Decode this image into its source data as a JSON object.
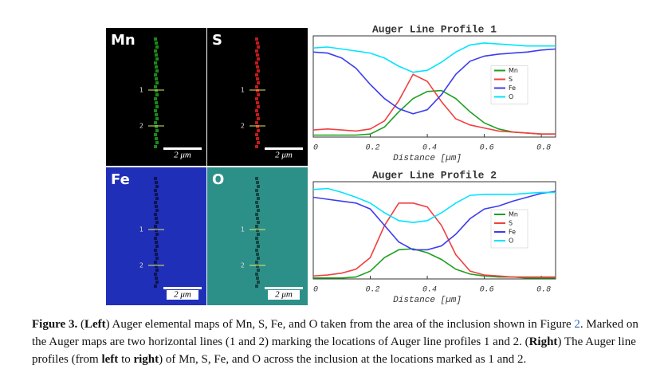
{
  "maps": [
    {
      "label": "Mn",
      "markers": [
        "1",
        "2"
      ],
      "scale": "2 μm",
      "background": "#000000",
      "streak": "#1fa01f"
    },
    {
      "label": "S",
      "markers": [
        "1",
        "2"
      ],
      "scale": "2 μm",
      "background": "#000000",
      "streak": "#e02020"
    },
    {
      "label": "Fe",
      "markers": [
        "1",
        "2"
      ],
      "scale": "2 μm",
      "background": "#1f2fb8",
      "streak": "#0a0f40"
    },
    {
      "label": "O",
      "markers": [
        "1",
        "2"
      ],
      "scale": "2 μm",
      "background": "#2c8f88",
      "streak": "#123c3a"
    }
  ],
  "chart_data": [
    {
      "type": "line",
      "title": "Auger Line Profile 1",
      "x_label": "Distance [µm]",
      "x": [
        0,
        0.05,
        0.1,
        0.15,
        0.2,
        0.25,
        0.3,
        0.35,
        0.4,
        0.45,
        0.5,
        0.55,
        0.6,
        0.65,
        0.7,
        0.75,
        0.8,
        0.85
      ],
      "xlim": [
        0,
        0.85
      ],
      "xticks": [
        0,
        0.2,
        0.4,
        0.6,
        0.8
      ],
      "ylim": [
        0,
        100
      ],
      "legend": "center right",
      "series": [
        {
          "name": "Mn",
          "color": "#1fa01f",
          "values": [
            2,
            2,
            2,
            2,
            3,
            10,
            25,
            38,
            45,
            46,
            38,
            25,
            14,
            8,
            5,
            4,
            3,
            3
          ]
        },
        {
          "name": "S",
          "color": "#f04040",
          "values": [
            7,
            8,
            7,
            6,
            8,
            16,
            36,
            62,
            55,
            35,
            18,
            12,
            9,
            6,
            5,
            4,
            3,
            3
          ]
        },
        {
          "name": "Fe",
          "color": "#3c3cf0",
          "values": [
            84,
            83,
            78,
            68,
            52,
            38,
            28,
            23,
            27,
            42,
            62,
            75,
            80,
            82,
            83,
            84,
            86,
            87
          ]
        },
        {
          "name": "O",
          "color": "#00e4ff",
          "values": [
            88,
            89,
            87,
            85,
            83,
            78,
            70,
            64,
            66,
            74,
            84,
            91,
            93,
            92,
            91,
            90,
            90,
            90
          ]
        }
      ]
    },
    {
      "type": "line",
      "title": "Auger Line Profile 2",
      "x_label": "Distance [µm]",
      "x": [
        0,
        0.05,
        0.1,
        0.15,
        0.2,
        0.25,
        0.3,
        0.35,
        0.4,
        0.45,
        0.5,
        0.55,
        0.6,
        0.65,
        0.7,
        0.75,
        0.8,
        0.85
      ],
      "xlim": [
        0,
        0.85
      ],
      "xticks": [
        0,
        0.2,
        0.4,
        0.6,
        0.8
      ],
      "ylim": [
        0,
        100
      ],
      "legend": "center right",
      "series": [
        {
          "name": "Mn",
          "color": "#1fa01f",
          "values": [
            1,
            1,
            1,
            2,
            8,
            22,
            30,
            31,
            27,
            20,
            10,
            5,
            3,
            2,
            2,
            1,
            1,
            1
          ]
        },
        {
          "name": "S",
          "color": "#f04040",
          "values": [
            3,
            4,
            6,
            10,
            22,
            55,
            78,
            78,
            74,
            55,
            25,
            8,
            4,
            3,
            2,
            2,
            2,
            2
          ]
        },
        {
          "name": "Fe",
          "color": "#3c3cf0",
          "values": [
            84,
            82,
            80,
            78,
            72,
            55,
            38,
            30,
            30,
            34,
            46,
            62,
            72,
            75,
            80,
            84,
            88,
            90
          ]
        },
        {
          "name": "O",
          "color": "#00e4ff",
          "values": [
            92,
            93,
            89,
            84,
            78,
            68,
            60,
            58,
            60,
            68,
            78,
            86,
            87,
            87,
            87,
            88,
            89,
            89
          ]
        }
      ]
    }
  ],
  "caption": [
    {
      "text": "Figure 3.",
      "style": "bold"
    },
    {
      "text": " (",
      "style": "plain"
    },
    {
      "text": "Left",
      "style": "bold"
    },
    {
      "text": ") Auger elemental maps of Mn, S, Fe, and O taken from the area of the inclusion shown in Figure ",
      "style": "plain"
    },
    {
      "text": "2",
      "style": "link"
    },
    {
      "text": ". Marked on the Auger maps are two horizontal lines (1 and 2) marking the locations of Auger line profiles 1 and 2. (",
      "style": "plain"
    },
    {
      "text": "Right",
      "style": "bold"
    },
    {
      "text": ") The Auger line profiles (from ",
      "style": "plain"
    },
    {
      "text": "left",
      "style": "bold"
    },
    {
      "text": " to ",
      "style": "plain"
    },
    {
      "text": "right",
      "style": "bold"
    },
    {
      "text": ") of Mn, S, Fe, and O across the inclusion at the locations marked as 1 and 2.",
      "style": "plain"
    }
  ]
}
